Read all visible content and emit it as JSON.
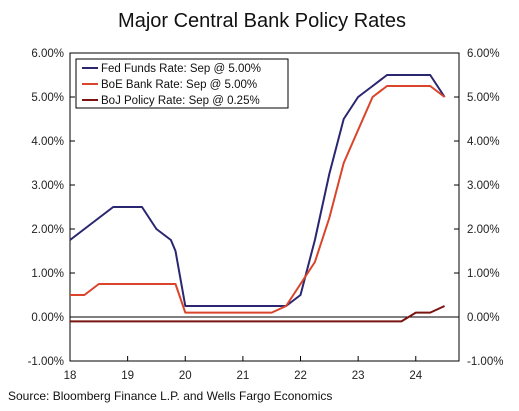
{
  "chart_data": {
    "type": "line",
    "title": "Major Central Bank Policy Rates",
    "source": "Source: Bloomberg Finance L.P. and Wells Fargo Economics",
    "ylim": [
      -1,
      6
    ],
    "y_ticks_left": [
      "6.00%",
      "5.00%",
      "4.00%",
      "3.00%",
      "2.00%",
      "1.00%",
      "0.00%",
      "-1.00%"
    ],
    "y_ticks_right": [
      "6.00%",
      "5.00%",
      "4.00%",
      "3.00%",
      "2.00%",
      "1.00%",
      "0.00%",
      "-1.00%"
    ],
    "y_tick_values": [
      6,
      5,
      4,
      3,
      2,
      1,
      0,
      -1
    ],
    "x_tick_labels": [
      "18",
      "19",
      "20",
      "21",
      "22",
      "23",
      "24"
    ],
    "x_tick_values": [
      2018,
      2019,
      2020,
      2021,
      2022,
      2023,
      2024
    ],
    "xlim": [
      2018,
      2024.75
    ],
    "legend_position": "top-left",
    "series": [
      {
        "name": "Fed Funds Rate: Sep @ 5.00%",
        "color": "#2b2670",
        "x": [
          2018.0,
          2018.75,
          2019.25,
          2019.5,
          2019.75,
          2019.83,
          2020.0,
          2020.25,
          2021.0,
          2021.75,
          2022.0,
          2022.25,
          2022.5,
          2022.75,
          2023.0,
          2023.25,
          2023.5,
          2024.0,
          2024.25,
          2024.5
        ],
        "y": [
          1.75,
          2.5,
          2.5,
          2.0,
          1.75,
          1.5,
          0.25,
          0.25,
          0.25,
          0.25,
          0.5,
          1.75,
          3.25,
          4.5,
          5.0,
          5.25,
          5.5,
          5.5,
          5.5,
          5.0
        ]
      },
      {
        "name": "BoE Bank Rate: Sep @ 5.00%",
        "color": "#d9442a",
        "x": [
          2018.0,
          2018.25,
          2018.5,
          2019.0,
          2019.5,
          2019.75,
          2019.83,
          2020.0,
          2020.25,
          2021.0,
          2021.5,
          2021.75,
          2022.0,
          2022.25,
          2022.5,
          2022.75,
          2023.0,
          2023.25,
          2023.5,
          2024.0,
          2024.25,
          2024.5
        ],
        "y": [
          0.5,
          0.5,
          0.75,
          0.75,
          0.75,
          0.75,
          0.75,
          0.1,
          0.1,
          0.1,
          0.1,
          0.25,
          0.75,
          1.25,
          2.25,
          3.5,
          4.25,
          5.0,
          5.25,
          5.25,
          5.25,
          5.0
        ]
      },
      {
        "name": "BoJ Policy Rate: Sep @ 0.25%",
        "color": "#7a1410",
        "x": [
          2018.0,
          2019.0,
          2020.0,
          2021.0,
          2022.0,
          2023.0,
          2023.75,
          2024.0,
          2024.25,
          2024.5
        ],
        "y": [
          -0.1,
          -0.1,
          -0.1,
          -0.1,
          -0.1,
          -0.1,
          -0.1,
          0.1,
          0.1,
          0.25
        ]
      }
    ]
  }
}
